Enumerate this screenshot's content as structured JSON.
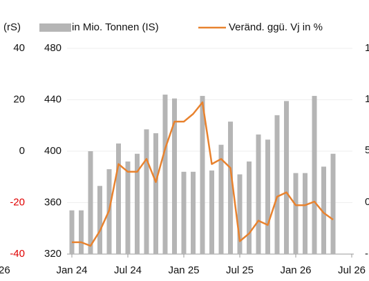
{
  "chart_data": {
    "type": "bar_line",
    "categories": [
      "Jan 24",
      null,
      null,
      null,
      null,
      null,
      "Jul 24",
      null,
      null,
      null,
      null,
      null,
      "Jan 25",
      null,
      null,
      null,
      null,
      null,
      "Jul 25",
      null,
      null,
      null,
      null,
      null,
      "Jan 26",
      null,
      null,
      null,
      null,
      null,
      "Jul 26"
    ],
    "series": [
      {
        "name": "in Mio. Tonnen (IS)",
        "color": "#b5b5b5",
        "kind": "bar",
        "axis": "y",
        "values": [
          354,
          354,
          400,
          373,
          386,
          406,
          392,
          398,
          417,
          414,
          444,
          441,
          384,
          384,
          443,
          385,
          405,
          423,
          382,
          392,
          413,
          409,
          428,
          439,
          383,
          383,
          443,
          388,
          398,
          null,
          null
        ]
      },
      {
        "name": "Veränd. ggü. Vj in %",
        "color": "#e8822e",
        "kind": "line",
        "axis": "y2",
        "values": [
          -35.4,
          -35.4,
          -36.8,
          -31,
          -23,
          -5,
          -8,
          -8,
          -3,
          -12,
          1,
          11.5,
          11.5,
          14.5,
          19,
          -5,
          -3,
          -6.5,
          -35,
          -32,
          -27,
          -28.7,
          -17.7,
          -16,
          -21,
          -21,
          -19.6,
          -24,
          -26.6,
          null,
          null
        ]
      }
    ],
    "ylim": [
      320,
      480
    ],
    "yticks": [
      320,
      360,
      400,
      440,
      480
    ],
    "y2lim": [
      -40,
      40
    ],
    "y2ticks": [
      -40,
      -20,
      0,
      20,
      40
    ],
    "negative_tick_color": "#e00000",
    "grid": true,
    "cropped_left": [
      "(rS)",
      "26"
    ],
    "cropped_right": [
      "1",
      "1",
      "5",
      "0",
      "-"
    ]
  }
}
